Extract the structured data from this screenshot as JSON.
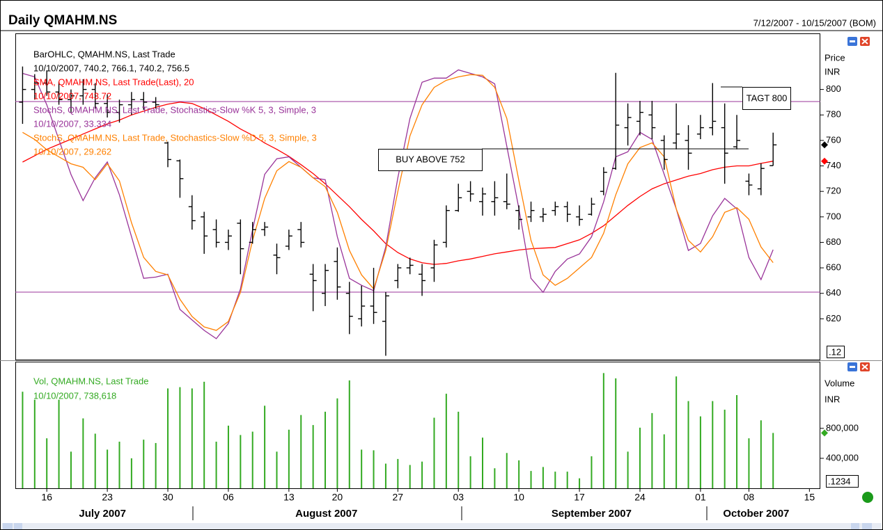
{
  "chart_data": [
    {
      "type": "ohlc",
      "title": "Daily QMAHM.NS",
      "subtitle": "7/12/2007 - 10/15/2007 (BOM)",
      "y_label": "Price",
      "y_unit": "INR",
      "scale_note": ".12",
      "xlim": [
        -0.6,
        65.9
      ],
      "ylim": [
        588,
        844
      ],
      "yticks": [
        620,
        640,
        660,
        680,
        700,
        720,
        740,
        760,
        780,
        800
      ],
      "y2lim": [
        -1.3,
        101.5
      ],
      "annotations": [
        "BUY ABOVE 752",
        "TAGT 800"
      ],
      "ohlc": {
        "name": "BarOHLC, QMAHM.NS, Last Trade",
        "last": "10/10/2007, 740.2, 766.1, 740.2, 756.5",
        "color": "#000000",
        "open": [
          790,
          800,
          805,
          798,
          792,
          795,
          800,
          789,
          782,
          788,
          792,
          790,
          758,
          744,
          708,
          700,
          690,
          680,
          695,
          680,
          690,
          670,
          677,
          690,
          655,
          640,
          665,
          640,
          620,
          630,
          618,
          650,
          660,
          655,
          660,
          680,
          705,
          720,
          712,
          712,
          712,
          705,
          700,
          700,
          705,
          708,
          700,
          702,
          720,
          738,
          770,
          775,
          780,
          760,
          758,
          760,
          765,
          770,
          770,
          755,
          728,
          722,
          740.2
        ],
        "high": [
          818,
          812,
          815,
          806,
          800,
          808,
          805,
          796,
          792,
          798,
          798,
          794,
          759,
          745,
          717,
          704,
          698,
          690,
          698,
          696,
          696,
          679,
          690,
          696,
          663,
          663,
          676,
          649,
          646,
          660,
          641,
          663,
          668,
          663,
          682,
          709,
          726,
          728,
          723,
          728,
          734,
          709,
          712,
          707,
          712,
          712,
          709,
          715,
          739,
          813,
          789,
          791,
          791,
          764,
          789,
          772,
          780,
          805,
          789,
          780,
          734,
          742,
          766.1
        ],
        "low": [
          773,
          792,
          795,
          788,
          782,
          788,
          785,
          778,
          774,
          780,
          784,
          785,
          739,
          715,
          690,
          671,
          676,
          674,
          655,
          679,
          685,
          655,
          674,
          676,
          626,
          630,
          635,
          608,
          614,
          616,
          591,
          644,
          655,
          638,
          649,
          676,
          704,
          712,
          701,
          701,
          706,
          690,
          696,
          696,
          701,
          696,
          693,
          701,
          717,
          737,
          756,
          764,
          761,
          737,
          753,
          737,
          761,
          764,
          726,
          753,
          717,
          717,
          740.2
        ],
        "close": [
          800,
          805,
          798,
          792,
          795,
          800,
          789,
          782,
          788,
          792,
          790,
          788,
          745,
          730,
          697,
          685,
          680,
          685,
          675,
          690,
          692,
          668,
          685,
          680,
          650,
          658,
          645,
          622,
          630,
          625,
          638,
          660,
          662,
          650,
          678,
          705,
          715,
          718,
          718,
          715,
          710,
          698,
          705,
          702,
          708,
          702,
          698,
          710,
          735,
          772,
          778,
          782,
          770,
          745,
          765,
          750,
          770,
          775,
          750,
          760,
          725,
          738,
          756.5
        ]
      },
      "series": [
        {
          "name": "SMA, QMAHM.NS, Last Trade(Last),  20",
          "last": "10/10/2007, 743.72",
          "color": "#ff0000",
          "values": [
            743,
            748,
            753,
            757,
            761,
            765,
            769,
            773,
            776,
            780,
            783,
            786,
            788.5,
            790,
            789,
            785,
            780,
            775,
            769,
            764,
            758,
            753,
            747.5,
            741,
            734,
            726,
            717,
            708,
            698,
            689,
            679,
            672,
            667,
            664,
            662.7,
            663.5,
            665.5,
            667,
            669,
            671,
            672.5,
            674,
            675,
            675.5,
            676,
            679,
            682,
            687,
            693,
            701,
            709,
            716,
            722,
            726,
            729,
            732,
            734,
            737,
            739,
            740,
            740,
            742,
            743.72
          ]
        },
        {
          "name": "StochS, QMAHM.NS, Last Trade, Stochastics-Slow %K 5, 3, Simple, 3",
          "last": "10/10/2007, 33.334",
          "color": "#993399",
          "axis": "y2",
          "values": [
            88.9,
            87.8,
            79,
            68,
            57,
            48.8,
            56,
            61,
            50.6,
            37.4,
            24.3,
            24.7,
            25.6,
            14.5,
            11.2,
            7.9,
            5.3,
            10.1,
            21,
            39.6,
            57.1,
            62,
            62.6,
            59.3,
            56,
            55.4,
            37.4,
            24.3,
            22.1,
            20.4,
            34.2,
            56,
            74.7,
            86.1,
            87.4,
            87.4,
            90,
            88.9,
            87.8,
            85.6,
            65.9,
            46.2,
            24.3,
            19.9,
            26.5,
            30.4,
            32,
            37.4,
            48.4,
            62.6,
            64.2,
            70.3,
            68.1,
            57.1,
            46.2,
            33.1,
            35.3,
            44,
            49.5,
            46.2,
            30.9,
            23.9,
            33.334
          ]
        },
        {
          "name": "StochS, QMAHM.NS, Last Trade, Stochastics-Slow %D 5, 3, Simple, 3",
          "last": "10/10/2007, 29.262",
          "color": "#ff8000",
          "axis": "y2",
          "values": [
            70.3,
            68.1,
            64.8,
            62.6,
            60.4,
            59.3,
            55.4,
            60.4,
            55,
            41.8,
            30.9,
            26.5,
            25.4,
            17.7,
            12.3,
            9,
            7.9,
            10.7,
            19.9,
            36.3,
            49.5,
            58.2,
            61.1,
            59.3,
            56,
            53.2,
            45.1,
            33.1,
            25.4,
            21,
            33.1,
            51.7,
            69.2,
            79,
            84.5,
            86.7,
            87.8,
            88.5,
            88.3,
            84.5,
            74.7,
            55,
            36.3,
            25.4,
            22.1,
            24.3,
            27.6,
            30.9,
            38.5,
            50.6,
            60.4,
            65.5,
            67,
            62.6,
            46.2,
            36.3,
            32.6,
            37.4,
            45.1,
            46.6,
            42.9,
            34.2,
            29.262
          ]
        }
      ]
    },
    {
      "type": "bar",
      "y_label": "Volume",
      "y_unit": "INR",
      "scale_note": ".1234",
      "xlim": [
        -0.6,
        65.9
      ],
      "xticks": [
        {
          "value": 2,
          "label": "16"
        },
        {
          "value": 7,
          "label": "23"
        },
        {
          "value": 12,
          "label": "30"
        },
        {
          "value": 17,
          "label": "06"
        },
        {
          "value": 22,
          "label": "13"
        },
        {
          "value": 26,
          "label": "20"
        },
        {
          "value": 31,
          "label": "27"
        },
        {
          "value": 36,
          "label": "03"
        },
        {
          "value": 41,
          "label": "10"
        },
        {
          "value": 46,
          "label": "17"
        },
        {
          "value": 51,
          "label": "24"
        },
        {
          "value": 56,
          "label": "01"
        },
        {
          "value": 60,
          "label": "08"
        },
        {
          "value": 65,
          "label": "15"
        }
      ],
      "month_ticks": [
        {
          "value": 6.6,
          "label": "July 2007"
        },
        {
          "value": 25.1,
          "label": "August 2007"
        },
        {
          "value": 47,
          "label": "September 2007"
        },
        {
          "value": 60.6,
          "label": "October 2007"
        }
      ],
      "ylim": [
        0,
        1690000
      ],
      "yticks": [
        {
          "value": 400000,
          "label": "400,000"
        },
        {
          "value": 800000,
          "label": "800,000"
        }
      ],
      "series": [
        {
          "name": "Vol, QMAHM.NS, Last Trade",
          "last": "10/10/2007, 738,618",
          "color": "#33aa22",
          "values": [
            1289000,
            1182000,
            667000,
            1182000,
            489000,
            933000,
            729000,
            516000,
            622000,
            400000,
            649000,
            604000,
            1333000,
            1350000,
            1333000,
            1422000,
            622000,
            836000,
            711000,
            756000,
            1102000,
            489000,
            782000,
            978000,
            844000,
            1022000,
            1200000,
            1440000,
            516000,
            507000,
            329000,
            391000,
            311000,
            356000,
            942000,
            1262000,
            1022000,
            427000,
            676000,
            267000,
            471000,
            373000,
            231000,
            284000,
            222000,
            222000,
            133000,
            427000,
            1538000,
            1467000,
            489000,
            809000,
            1004000,
            720000,
            1493000,
            1164000,
            960000,
            1164000,
            1049000,
            1244000,
            667000,
            907000,
            738618
          ]
        }
      ]
    }
  ]
}
